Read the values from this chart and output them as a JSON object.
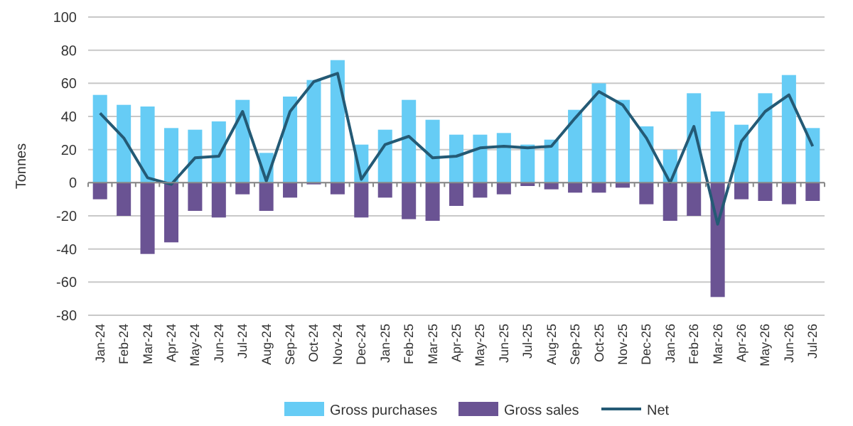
{
  "chart_data": {
    "type": "bar",
    "ylabel": "Tonnes",
    "categories": [
      "Jan-24",
      "Feb-24",
      "Mar-24",
      "Apr-24",
      "May-24",
      "Jun-24",
      "Jul-24",
      "Aug-24",
      "Sep-24",
      "Oct-24",
      "Nov-24",
      "Dec-24",
      "Jan-25",
      "Feb-25",
      "Mar-25",
      "Apr-25",
      "May-25",
      "Jun-25",
      "Jul-25",
      "Aug-25",
      "Sep-25",
      "Oct-25",
      "Nov-25",
      "Dec-25",
      "Jan-26",
      "Feb-26",
      "Mar-26",
      "Apr-26",
      "May-26",
      "Jun-26",
      "Jul-26"
    ],
    "series": [
      {
        "name": "Gross purchases",
        "color": "#66ccf5",
        "values": [
          53,
          47,
          46,
          33,
          32,
          37,
          50,
          18,
          52,
          62,
          74,
          23,
          32,
          50,
          38,
          29,
          29,
          30,
          23,
          26,
          44,
          60,
          50,
          34,
          20,
          54,
          43,
          35,
          54,
          65,
          33
        ]
      },
      {
        "name": "Gross sales",
        "color": "#6a5393",
        "values": [
          -10,
          -20,
          -43,
          -36,
          -17,
          -21,
          -7,
          -17,
          -9,
          -1,
          -7,
          -21,
          -9,
          -22,
          -23,
          -14,
          -9,
          -7,
          -2,
          -4,
          -6,
          -6,
          -3,
          -13,
          -23,
          -20,
          -69,
          -10,
          -11,
          -13,
          -11
        ]
      },
      {
        "name": "Net",
        "type": "line",
        "color": "#245a75",
        "values": [
          42,
          27,
          3,
          -1,
          15,
          16,
          43,
          1,
          43,
          61,
          66,
          2,
          23,
          28,
          15,
          16,
          21,
          22,
          21,
          22,
          39,
          55,
          47,
          27,
          0,
          34,
          -25,
          25,
          43,
          53,
          22
        ]
      }
    ],
    "ylim": [
      -80,
      100
    ],
    "yticks": [
      -80,
      -60,
      -40,
      -20,
      0,
      20,
      40,
      60,
      80,
      100
    ],
    "stacked": true,
    "grid": "y",
    "legend": "bottom",
    "marker": "none"
  }
}
